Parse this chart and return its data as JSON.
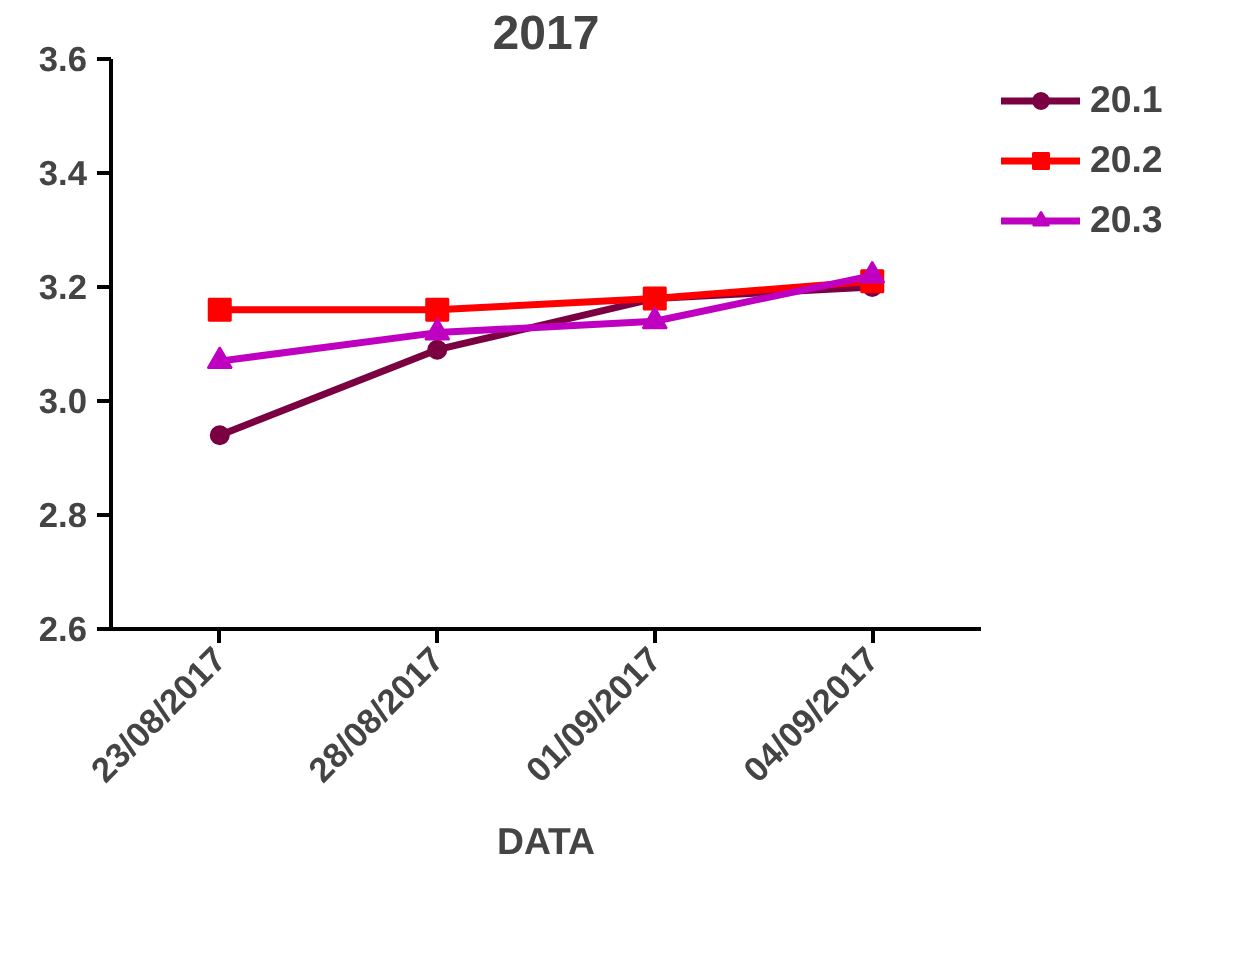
{
  "chart_data": {
    "type": "line",
    "title": "2017",
    "xlabel": "DATA",
    "categories": [
      "23/08/2017",
      "28/08/2017",
      "01/09/2017",
      "04/09/2017"
    ],
    "series": [
      {
        "name": "20.1",
        "color": "#7b0041",
        "marker": "circle",
        "values": [
          2.94,
          3.09,
          3.18,
          3.2
        ]
      },
      {
        "name": "20.2",
        "color": "#ff0000",
        "marker": "square",
        "values": [
          3.16,
          3.16,
          3.18,
          3.21
        ]
      },
      {
        "name": "20.3",
        "color": "#c000c0",
        "marker": "triangle",
        "values": [
          3.07,
          3.12,
          3.14,
          3.22
        ]
      }
    ],
    "ylim": [
      2.6,
      3.6
    ],
    "yticks": [
      2.6,
      2.8,
      {
        "value": 3.0,
        "label": "3.0"
      },
      3.2,
      3.4,
      3.6
    ],
    "grid": false,
    "legend": "top right",
    "line_style": "solid"
  }
}
